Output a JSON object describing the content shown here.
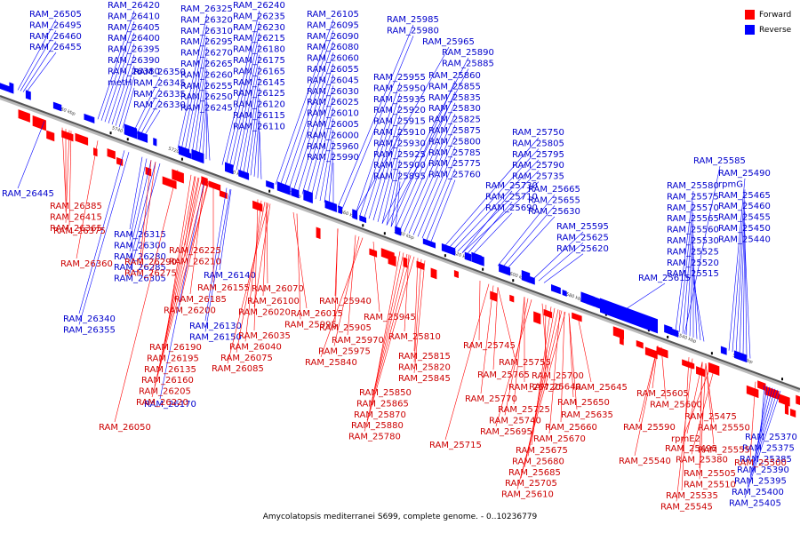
{
  "caption": "Amycolatopsis mediterranei S699, complete genome. - 0..10236779",
  "legend": [
    {
      "label": "Forward",
      "color": "#ff0000"
    },
    {
      "label": "Reverse",
      "color": "#0000ff"
    }
  ],
  "colors": {
    "forward": "#ff0000",
    "reverse": "#0000ff",
    "forward_label": "#cc0000",
    "reverse_label": "#0000cc",
    "backbone": "#555555"
  },
  "ticks": [
    "5760 kbp",
    "5740 kbp",
    "5720 kbp",
    "5700 kbp",
    "5680 kbp",
    "5660 kbp",
    "5640 kbp",
    "5620 kbp",
    "5600 kbp",
    "5580 kbp",
    "5560 kbp",
    "5540 kbp",
    "5520 kbp"
  ],
  "reverse_labels_top": [
    "RAM_26505",
    "RAM_26495",
    "RAM_26460",
    "RAM_26455",
    "RAM_26420",
    "RAM_26410",
    "RAM_26405",
    "RAM_26400",
    "RAM_26395",
    "RAM_26390",
    "RAM_26380",
    "metH",
    "RAM_26350",
    "RAM_26345",
    "RAM_26335",
    "RAM_26330",
    "RAM_26325",
    "RAM_26320",
    "RAM_26310",
    "RAM_26295",
    "RAM_26270",
    "RAM_26265",
    "RAM_26260",
    "RAM_26255",
    "RAM_26250",
    "RAM_26245",
    "RAM_26240",
    "RAM_26235",
    "RAM_26230",
    "RAM_26215",
    "RAM_26180",
    "RAM_26175",
    "RAM_26165",
    "RAM_26145",
    "RAM_26125",
    "RAM_26120",
    "RAM_26115",
    "RAM_26110",
    "RAM_26105",
    "RAM_26095",
    "RAM_26090",
    "RAM_26080",
    "RAM_26060",
    "RAM_26055",
    "RAM_26045",
    "RAM_26030",
    "RAM_26025",
    "RAM_26010",
    "RAM_26005",
    "RAM_26000",
    "RAM_25960",
    "RAM_25990",
    "RAM_25985",
    "RAM_25980",
    "RAM_25965",
    "RAM_25955",
    "RAM_25950",
    "RAM_25935",
    "RAM_25920",
    "RAM_25915",
    "RAM_25910",
    "RAM_25930",
    "RAM_25925",
    "RAM_25900",
    "RAM_25895",
    "RAM_25890",
    "RAM_25885",
    "RAM_25860",
    "RAM_25855",
    "RAM_25835",
    "RAM_25830",
    "RAM_25825",
    "RAM_25875",
    "RAM_25800",
    "RAM_25785",
    "RAM_25775",
    "RAM_25760",
    "RAM_25750",
    "RAM_25805",
    "RAM_25795",
    "RAM_25790",
    "RAM_25735",
    "RAM_25730",
    "RAM_25710",
    "RAM_25690",
    "RAM_25665",
    "RAM_25655",
    "RAM_25630",
    "RAM_25595",
    "RAM_25625",
    "RAM_25620",
    "RAM_25615",
    "RAM_25585",
    "RAM_25580",
    "RAM_25575",
    "RAM_25570",
    "RAM_25565",
    "RAM_25560",
    "RAM_25530",
    "RAM_25525",
    "RAM_25520",
    "RAM_25515",
    "RAM_25490",
    "rpmG",
    "RAM_25465",
    "RAM_25460",
    "RAM_25455",
    "RAM_25450",
    "RAM_25440"
  ],
  "reverse_labels_bottom": [
    "RAM_26445",
    "RAM_26315",
    "RAM_26300",
    "RAM_26280",
    "RAM_26285",
    "RAM_26305",
    "RAM_26340",
    "RAM_26355",
    "RAM_26140",
    "RAM_26130",
    "RAM_26150",
    "RAM_26170",
    "RAM_25370",
    "RAM_25375",
    "RAM_25385",
    "RAM_25390",
    "RAM_25395",
    "RAM_25400",
    "RAM_25405"
  ],
  "forward_labels_bottom": [
    "RAM_26385",
    "RAM_26415",
    "RAM_26365",
    "RAM_26375",
    "RAM_26360",
    "RAM_26290",
    "RAM_26275",
    "RAM_26225",
    "RAM_26210",
    "RAM_26155",
    "RAM_26185",
    "RAM_26200",
    "RAM_26190",
    "RAM_26195",
    "RAM_26135",
    "RAM_26160",
    "RAM_26205",
    "RAM_26220",
    "RAM_26050",
    "RAM_26070",
    "RAM_26100",
    "RAM_26020",
    "RAM_26015",
    "RAM_25995",
    "RAM_26035",
    "RAM_26040",
    "RAM_26075",
    "RAM_26085",
    "RAM_25940",
    "RAM_25905",
    "RAM_25945",
    "RAM_25970",
    "RAM_25975",
    "RAM_25840",
    "RAM_25810",
    "RAM_25815",
    "RAM_25820",
    "RAM_25845",
    "RAM_25850",
    "RAM_25865",
    "RAM_25870",
    "RAM_25880",
    "RAM_25780",
    "RAM_25745",
    "RAM_25755",
    "RAM_25765",
    "RAM_25770",
    "RAM_25715",
    "RAM_25720",
    "RAM_25725",
    "RAM_25740",
    "RAM_25695",
    "RAM_25700",
    "RAM_25640",
    "RAM_25645",
    "RAM_25635",
    "RAM_25650",
    "RAM_25660",
    "RAM_25670",
    "RAM_25675",
    "RAM_25680",
    "RAM_25685",
    "RAM_25705",
    "RAM_25610",
    "RAM_25605",
    "RAM_25600",
    "RAM_25590",
    "RAM_25540",
    "RAM_25475",
    "RAM_25550",
    "rpmE2",
    "RAM_25555",
    "RAM_25495",
    "RAM_25380",
    "RAM_25500",
    "RAM_25505",
    "RAM_25510",
    "RAM_25535",
    "RAM_25545"
  ]
}
